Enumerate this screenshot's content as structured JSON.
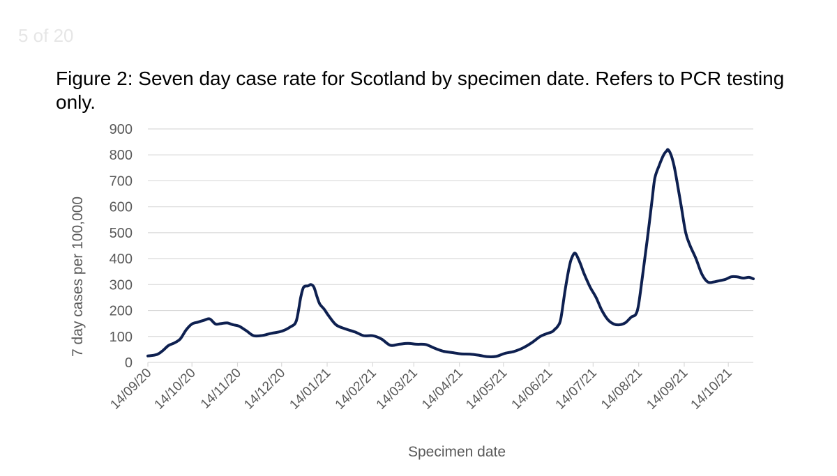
{
  "page": {
    "counter": "5 of 20"
  },
  "figure": {
    "title": "Figure 2: Seven day case rate for Scotland by specimen date. Refers to PCR testing only."
  },
  "colors": {
    "line": "#0e2050",
    "grid": "#d9d9d9",
    "axis_text": "#595959"
  },
  "chart_data": {
    "type": "line",
    "title": "Figure 2: Seven day case rate for Scotland by specimen date. Refers to PCR testing only.",
    "xlabel": "Specimen date",
    "ylabel": "7 day cases per 100,000",
    "ylim": [
      0,
      900
    ],
    "yticks": [
      0,
      100,
      200,
      300,
      400,
      500,
      600,
      700,
      800,
      900
    ],
    "xticks": [
      "14/09/20",
      "14/10/20",
      "14/11/20",
      "14/12/20",
      "14/01/21",
      "14/02/21",
      "14/03/21",
      "14/04/21",
      "14/05/21",
      "14/06/21",
      "14/07/21",
      "14/08/21",
      "14/09/21",
      "14/10/21"
    ],
    "xlim": [
      "2020-09-14",
      "2021-10-31"
    ],
    "grid": "horizontal",
    "legend": "none",
    "series": [
      {
        "x": [
          "2020-09-14",
          "2020-09-20",
          "2020-09-24",
          "2020-09-28",
          "2020-10-02",
          "2020-10-06",
          "2020-10-10",
          "2020-10-14",
          "2020-10-18",
          "2020-10-22",
          "2020-10-26",
          "2020-10-30",
          "2020-11-03",
          "2020-11-07",
          "2020-11-11",
          "2020-11-15",
          "2020-11-20",
          "2020-11-25",
          "2020-12-01",
          "2020-12-07",
          "2020-12-14",
          "2020-12-20",
          "2020-12-24",
          "2020-12-27",
          "2020-12-29",
          "2021-01-01",
          "2021-01-03",
          "2021-01-05",
          "2021-01-07",
          "2021-01-09",
          "2021-01-12",
          "2021-01-15",
          "2021-01-20",
          "2021-01-26",
          "2021-02-02",
          "2021-02-08",
          "2021-02-14",
          "2021-02-20",
          "2021-02-26",
          "2021-03-04",
          "2021-03-10",
          "2021-03-16",
          "2021-03-22",
          "2021-03-28",
          "2021-04-03",
          "2021-04-09",
          "2021-04-15",
          "2021-04-21",
          "2021-04-27",
          "2021-05-03",
          "2021-05-09",
          "2021-05-15",
          "2021-05-21",
          "2021-05-27",
          "2021-06-02",
          "2021-06-08",
          "2021-06-12",
          "2021-06-16",
          "2021-06-18",
          "2021-06-20",
          "2021-06-22",
          "2021-06-25",
          "2021-06-28",
          "2021-06-30",
          "2021-07-02",
          "2021-07-05",
          "2021-07-08",
          "2021-07-12",
          "2021-07-16",
          "2021-07-20",
          "2021-07-24",
          "2021-07-28",
          "2021-08-01",
          "2021-08-05",
          "2021-08-09",
          "2021-08-12",
          "2021-08-14",
          "2021-08-17",
          "2021-08-20",
          "2021-08-23",
          "2021-08-25",
          "2021-08-28",
          "2021-08-31",
          "2021-09-02",
          "2021-09-03",
          "2021-09-05",
          "2021-09-07",
          "2021-09-09",
          "2021-09-12",
          "2021-09-15",
          "2021-09-18",
          "2021-09-22",
          "2021-09-26",
          "2021-09-30",
          "2021-10-04",
          "2021-10-08",
          "2021-10-12",
          "2021-10-16",
          "2021-10-20",
          "2021-10-24",
          "2021-10-28",
          "2021-10-31"
        ],
        "y": [
          25,
          30,
          45,
          65,
          75,
          90,
          125,
          148,
          155,
          162,
          168,
          148,
          150,
          152,
          145,
          140,
          122,
          103,
          104,
          112,
          120,
          137,
          160,
          250,
          290,
          295,
          300,
          290,
          255,
          225,
          205,
          180,
          145,
          130,
          117,
          103,
          103,
          90,
          66,
          70,
          73,
          70,
          69,
          55,
          43,
          38,
          33,
          32,
          28,
          22,
          23,
          35,
          42,
          55,
          75,
          100,
          110,
          118,
          128,
          140,
          168,
          280,
          375,
          410,
          420,
          385,
          340,
          290,
          250,
          200,
          165,
          148,
          145,
          153,
          175,
          185,
          225,
          350,
          480,
          620,
          710,
          760,
          800,
          815,
          820,
          800,
          760,
          700,
          600,
          500,
          450,
          400,
          340,
          310,
          310,
          315,
          320,
          330,
          330,
          325,
          328,
          322
        ]
      }
    ]
  }
}
